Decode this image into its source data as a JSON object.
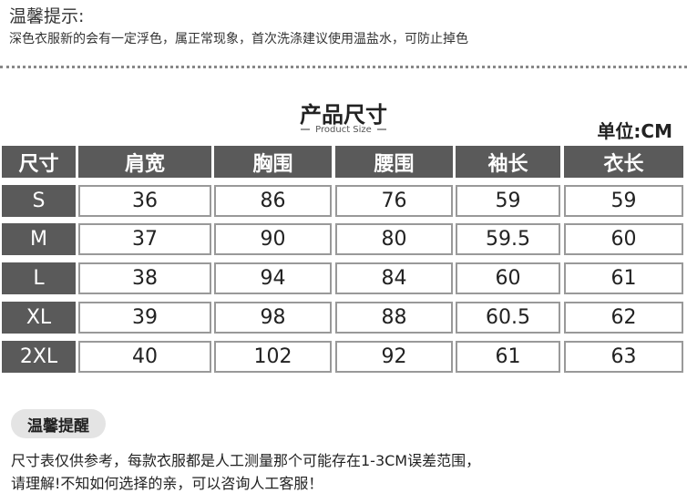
{
  "tip": {
    "title": "温馨提示:",
    "text": "深色衣服新的会有一定浮色，属正常现象，首次洗涤建议使用温盐水，可防止掉色"
  },
  "size_chart": {
    "title": "产品尺寸",
    "subtitle": "Product Size",
    "unit": "单位:CM",
    "headers": [
      "尺寸",
      "肩宽",
      "胸围",
      "腰围",
      "袖长",
      "衣长"
    ],
    "rows": [
      [
        "S",
        "36",
        "86",
        "76",
        "59",
        "59"
      ],
      [
        "M",
        "37",
        "90",
        "80",
        "59.5",
        "60"
      ],
      [
        "L",
        "38",
        "94",
        "84",
        "60",
        "61"
      ],
      [
        "XL",
        "39",
        "98",
        "88",
        "60.5",
        "62"
      ],
      [
        "2XL",
        "40",
        "102",
        "92",
        "61",
        "63"
      ]
    ]
  },
  "reminder": {
    "badge": "温馨提醒",
    "line1": "尺寸表仅供参考，每款衣服都是人工测量那个可能存在1-3CM误差范围，",
    "line2": "请理解!不知如何选择的亲，可以咨询人工客服！"
  },
  "colors": {
    "header_bg": "#5a5a5a",
    "cell_border": "#999999",
    "badge_bg": "#e4e4e4"
  }
}
